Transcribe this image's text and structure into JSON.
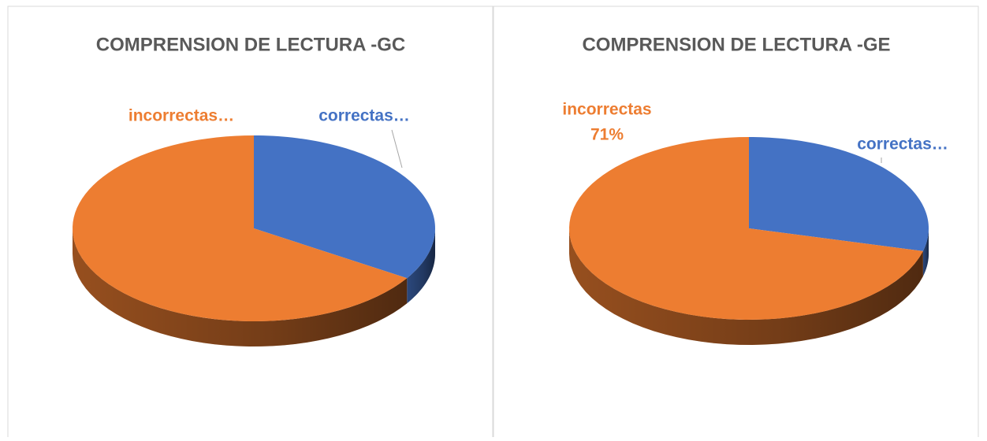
{
  "chart_data": [
    {
      "type": "pie",
      "title": "COMPRENSION DE LECTURA -GC",
      "categories": [
        "correctas…",
        "incorrectas…"
      ],
      "values": [
        34,
        66
      ],
      "colors": [
        "#4472c4",
        "#ed7d31"
      ]
    },
    {
      "type": "pie",
      "title": "COMPRENSION DE LECTURA -GE",
      "categories": [
        "correctas…",
        "incorrectas"
      ],
      "values": [
        29,
        71
      ],
      "value_labels": [
        null,
        "71%"
      ],
      "colors": [
        "#4472c4",
        "#ed7d31"
      ]
    }
  ]
}
